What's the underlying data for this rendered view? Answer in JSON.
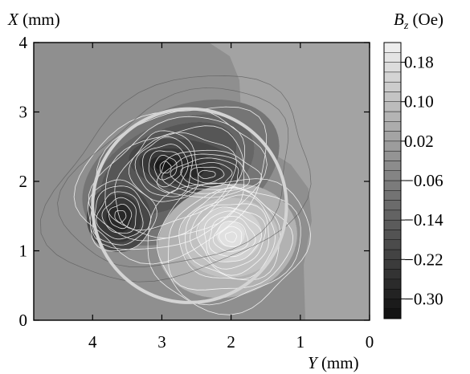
{
  "chart_data": {
    "type": "heatmap",
    "subtype": "filled-contour",
    "xlabel": {
      "symbol": "Y",
      "unit": " (mm)"
    },
    "ylabel": {
      "symbol": "X",
      "unit": " (mm)"
    },
    "colorbar_label": {
      "symbol": "B",
      "subscript": "z",
      "unit": " (Oe)"
    },
    "x_axis": {
      "min": 0,
      "max": 4.85,
      "reversed": true,
      "ticks": [
        4,
        3,
        2,
        1,
        0
      ],
      "tick_labels": [
        "4",
        "3",
        "2",
        "1",
        "0"
      ]
    },
    "y_axis": {
      "min": 0,
      "max": 4,
      "ticks": [
        0,
        1,
        2,
        3,
        4
      ],
      "tick_labels": [
        "0",
        "1",
        "2",
        "3",
        "4"
      ]
    },
    "colorbar": {
      "min": -0.34,
      "max": 0.22,
      "step": 0.02,
      "tick_values": [
        0.18,
        0.1,
        0.02,
        -0.06,
        -0.14,
        -0.22,
        -0.3
      ],
      "tick_labels": [
        "0.18",
        "0.10",
        "0.02",
        "−0.06",
        "−0.14",
        "−0.22",
        "−0.30"
      ]
    },
    "background_level": -0.05,
    "features": [
      {
        "kind": "minimum",
        "y_mm": 2.95,
        "x_mm": 2.2,
        "value": -0.3
      },
      {
        "kind": "minimum",
        "y_mm": 2.35,
        "x_mm": 2.1,
        "value": -0.29
      },
      {
        "kind": "minimum",
        "y_mm": 3.6,
        "x_mm": 1.5,
        "value": -0.27
      },
      {
        "kind": "maximum",
        "y_mm": 2.0,
        "x_mm": 1.2,
        "value": 0.19
      }
    ],
    "overlay_circle": {
      "center_y_mm": 2.6,
      "center_x_mm": 1.65,
      "radius_mm": 1.4,
      "color": "#d4d4d4"
    }
  }
}
